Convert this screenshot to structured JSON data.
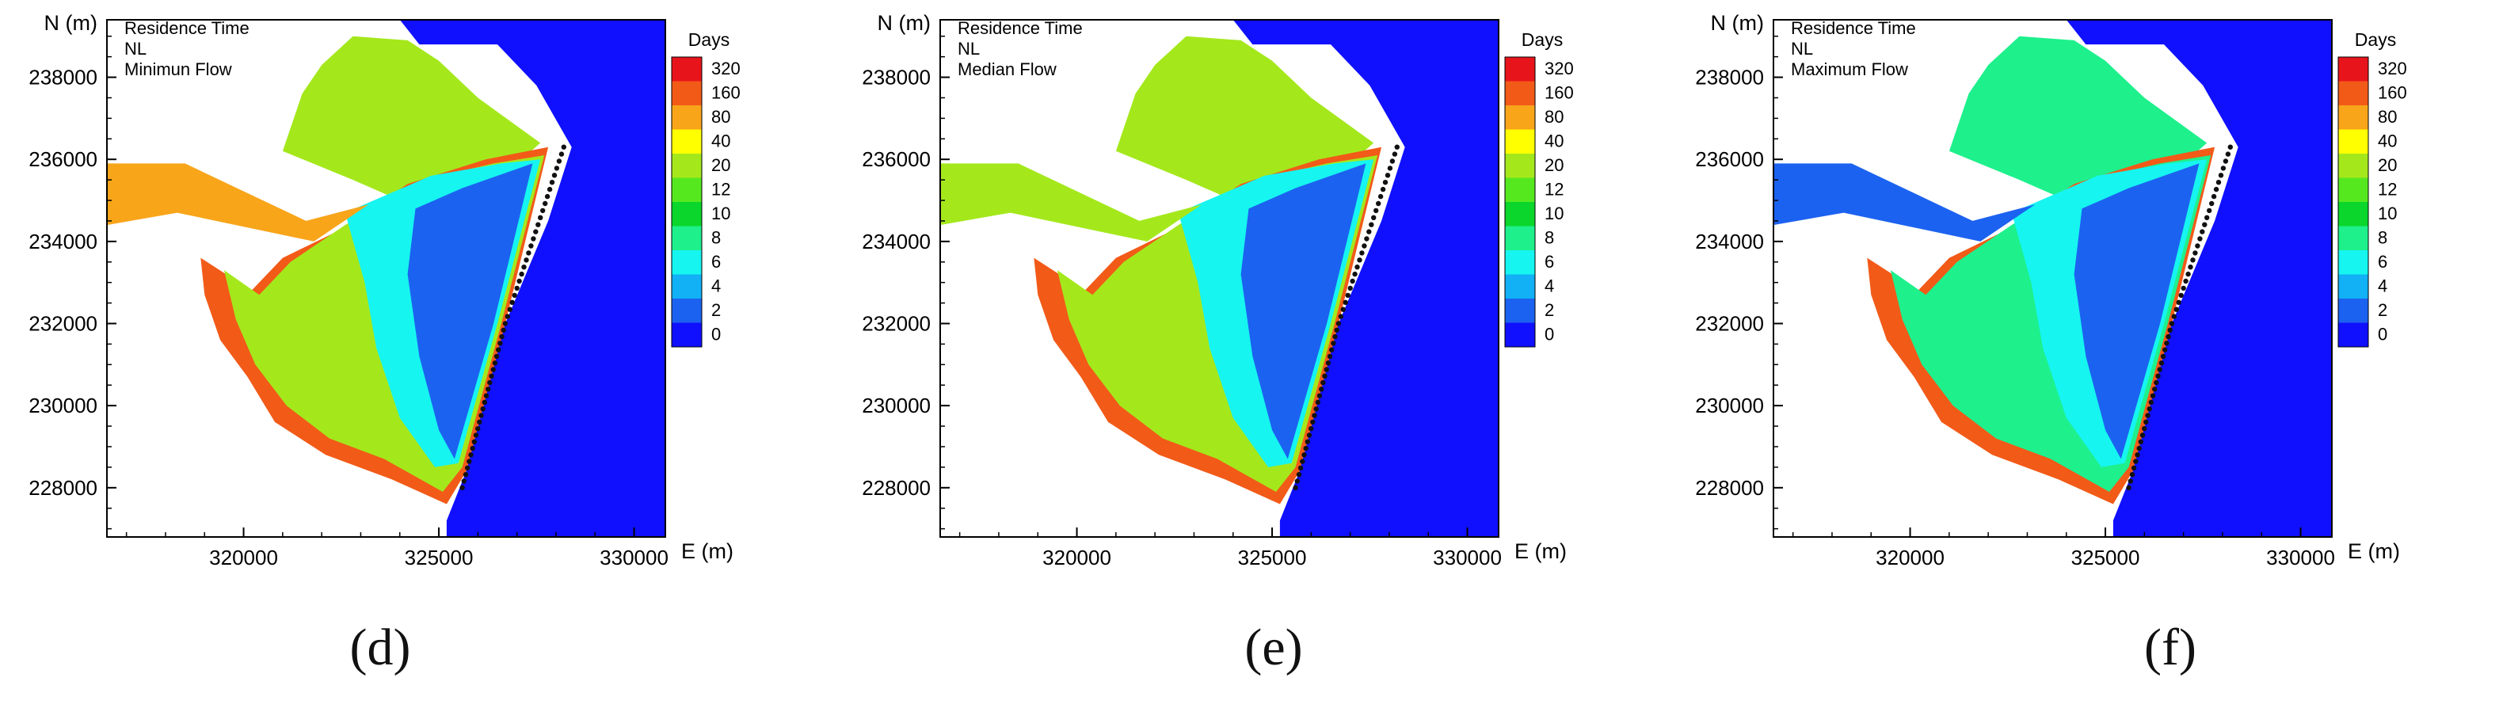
{
  "figure": {
    "axis": {
      "xlabel": "E (m)",
      "ylabel": "N (m)",
      "xticks": [
        "320000",
        "325000",
        "330000"
      ],
      "yticks": [
        "228000",
        "230000",
        "232000",
        "234000",
        "236000",
        "238000"
      ],
      "xlim": [
        316500,
        330800
      ],
      "ylim": [
        226800,
        239400
      ]
    },
    "legend": {
      "title": "Days",
      "levels": [
        "320",
        "160",
        "80",
        "40",
        "20",
        "12",
        "10",
        "8",
        "6",
        "4",
        "2",
        "0"
      ],
      "colors": [
        "#e8141c",
        "#f25a18",
        "#f8a51a",
        "#ffff00",
        "#a4e81c",
        "#56e81f",
        "#0ad62c",
        "#1ef08c",
        "#16f5f0",
        "#12b0f5",
        "#1c62f0",
        "#1010ff"
      ]
    }
  },
  "panels": [
    {
      "label": "(d)",
      "text1": "Residence Time",
      "text2": "NL",
      "text3": "Minimun Flow"
    },
    {
      "label": "(e)",
      "text1": "Residence Time",
      "text2": "NL",
      "text3": "Median Flow"
    },
    {
      "label": "(f)",
      "text1": "Residence Time",
      "text2": "NL",
      "text3": "Maximum Flow"
    }
  ],
  "chart_data": [
    {
      "type": "heatmap",
      "title": "Residence Time NL Minimun Flow",
      "xlabel": "E (m)",
      "ylabel": "N (m)",
      "xlim": [
        316500,
        330800
      ],
      "ylim": [
        226800,
        239400
      ],
      "colorbar_title": "Days",
      "colorbar_levels": [
        320,
        160,
        80,
        40,
        20,
        12,
        10,
        8,
        6,
        4,
        2,
        0
      ],
      "coastline_points": [
        [
          325600,
          228000
        ],
        [
          326700,
          232000
        ],
        [
          328200,
          236300
        ]
      ],
      "zones_days": {
        "offshore": 0,
        "nearshore": 2,
        "inner_lagoon": 6,
        "upper_lagoon": 20,
        "outer_margin": 160,
        "west_channel": 80
      }
    },
    {
      "type": "heatmap",
      "title": "Residence Time NL Median Flow",
      "xlabel": "E (m)",
      "ylabel": "N (m)",
      "xlim": [
        316500,
        330800
      ],
      "ylim": [
        226800,
        239400
      ],
      "colorbar_title": "Days",
      "colorbar_levels": [
        320,
        160,
        80,
        40,
        20,
        12,
        10,
        8,
        6,
        4,
        2,
        0
      ],
      "coastline_points": [
        [
          325600,
          228000
        ],
        [
          326700,
          232000
        ],
        [
          328200,
          236300
        ]
      ],
      "zones_days": {
        "offshore": 0,
        "nearshore": 2,
        "inner_lagoon": 6,
        "upper_lagoon": 20,
        "outer_margin": 160,
        "west_channel": 20
      }
    },
    {
      "type": "heatmap",
      "title": "Residence Time NL Maximum Flow",
      "xlabel": "E (m)",
      "ylabel": "N (m)",
      "xlim": [
        316500,
        330800
      ],
      "ylim": [
        226800,
        239400
      ],
      "colorbar_title": "Days",
      "colorbar_levels": [
        320,
        160,
        80,
        40,
        20,
        12,
        10,
        8,
        6,
        4,
        2,
        0
      ],
      "coastline_points": [
        [
          325600,
          228000
        ],
        [
          326700,
          232000
        ],
        [
          328200,
          236300
        ]
      ],
      "zones_days": {
        "offshore": 0,
        "nearshore": 2,
        "inner_lagoon": 6,
        "upper_lagoon": 8,
        "outer_margin": 160,
        "west_channel": 2
      }
    }
  ]
}
